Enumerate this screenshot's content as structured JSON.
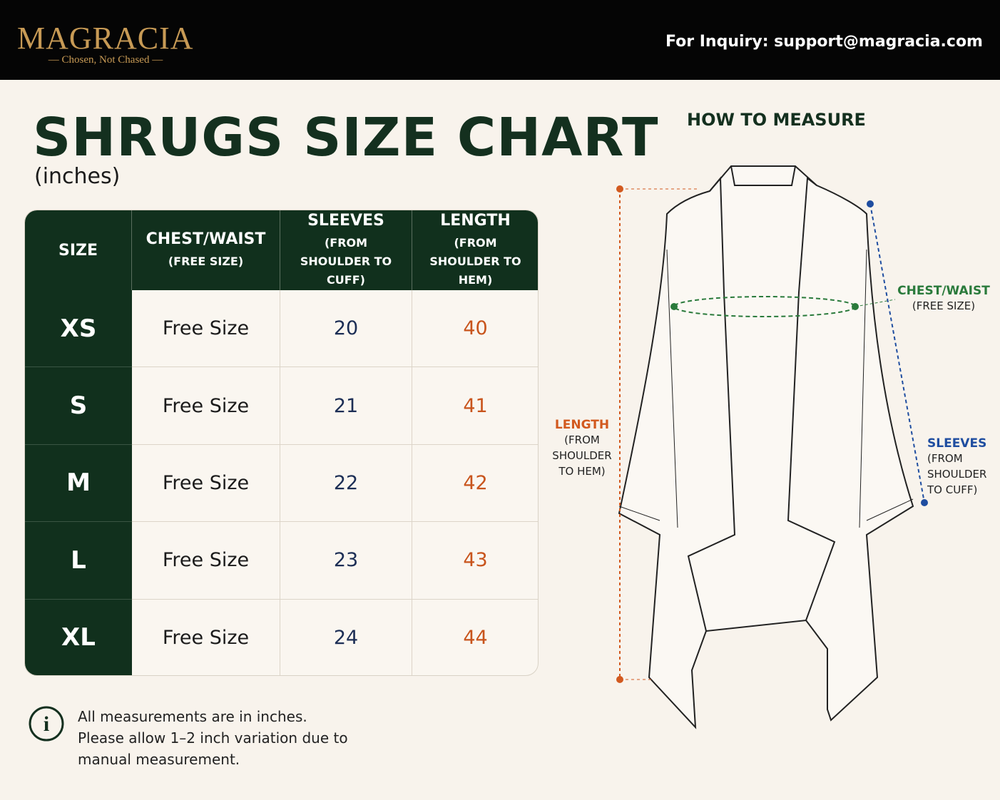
{
  "header": {
    "brand": "MAGRACIA",
    "tagline": "Chosen, Not Chased",
    "inquiry": "For Inquiry: support@magracia.com"
  },
  "title": "SHRUGS SIZE CHART",
  "subtitle": "(inches)",
  "table": {
    "columns": [
      {
        "label": "SIZE"
      },
      {
        "label": "CHEST/WAIST",
        "note": "(FREE SIZE)"
      },
      {
        "label": "SLEEVES",
        "note": "(FROM SHOULDER TO CUFF)"
      },
      {
        "label": "LENGTH",
        "note": "(FROM SHOULDER TO HEM)"
      }
    ],
    "rows": [
      [
        "XS",
        "Free Size",
        "20",
        "40"
      ],
      [
        "S",
        "Free Size",
        "21",
        "41"
      ],
      [
        "M",
        "Free Size",
        "22",
        "42"
      ],
      [
        "L",
        "Free Size",
        "23",
        "43"
      ],
      [
        "XL",
        "Free Size",
        "24",
        "44"
      ]
    ]
  },
  "note": [
    "All measurements are in inches.",
    "Please allow 1–2 inch variation due to manual measurement."
  ],
  "diagram": {
    "title": "HOW TO MEASURE",
    "chest": {
      "label": "CHEST/WAIST",
      "note": "(FREE SIZE)"
    },
    "length": {
      "label": "LENGTH",
      "note": "(FROM SHOULDER TO HEM)"
    },
    "sleeves": {
      "label": "SLEEVES",
      "note": "(FROM SHOULDER TO CUFF)"
    }
  }
}
